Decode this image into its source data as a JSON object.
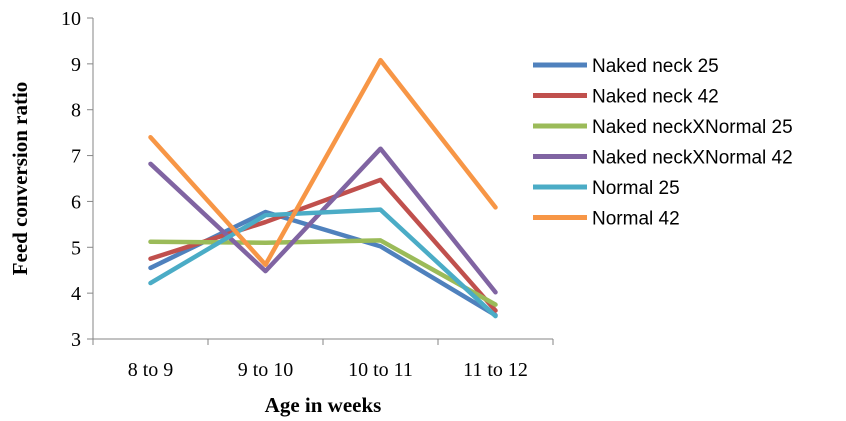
{
  "chart_data": {
    "type": "line",
    "title": "",
    "xlabel": "Age in weeks",
    "ylabel": "Feed conversion ratio",
    "categories": [
      "8 to 9",
      "9 to 10",
      "10 to 11",
      "11 to 12"
    ],
    "ylim": [
      3,
      10
    ],
    "yticks": [
      3,
      4,
      5,
      6,
      7,
      8,
      9,
      10
    ],
    "grid": false,
    "legend_position": "right",
    "series": [
      {
        "name": "Naked neck 25",
        "color": "#4F81BD",
        "values": [
          4.55,
          5.77,
          5.02,
          3.52
        ]
      },
      {
        "name": "Naked neck 42",
        "color": "#C0504D",
        "values": [
          4.75,
          5.55,
          6.47,
          3.62
        ]
      },
      {
        "name": "Naked neckXNormal 25",
        "color": "#9BBB59",
        "values": [
          5.12,
          5.1,
          5.15,
          3.75
        ]
      },
      {
        "name": "Naked neckXNormal 42",
        "color": "#8064A2",
        "values": [
          6.82,
          4.48,
          7.15,
          4.02
        ]
      },
      {
        "name": "Normal 25",
        "color": "#4BACC6",
        "values": [
          4.22,
          5.7,
          5.82,
          3.5
        ]
      },
      {
        "name": "Normal 42",
        "color": "#F79646",
        "values": [
          7.4,
          4.62,
          9.08,
          5.87
        ]
      }
    ]
  }
}
